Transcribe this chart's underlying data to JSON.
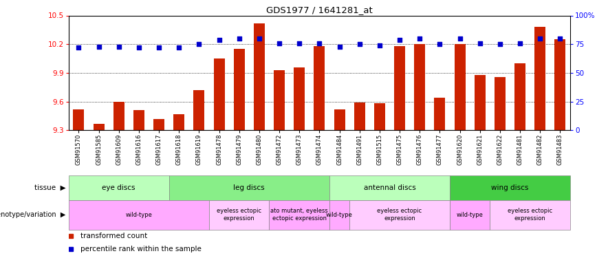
{
  "title": "GDS1977 / 1641281_at",
  "samples": [
    "GSM91570",
    "GSM91585",
    "GSM91609",
    "GSM91616",
    "GSM91617",
    "GSM91618",
    "GSM91619",
    "GSM91478",
    "GSM91479",
    "GSM91480",
    "GSM91472",
    "GSM91473",
    "GSM91474",
    "GSM91484",
    "GSM91491",
    "GSM91515",
    "GSM91475",
    "GSM91476",
    "GSM91477",
    "GSM91620",
    "GSM91621",
    "GSM91622",
    "GSM91481",
    "GSM91482",
    "GSM91483"
  ],
  "bar_values": [
    9.52,
    9.37,
    9.6,
    9.51,
    9.42,
    9.47,
    9.72,
    10.05,
    10.15,
    10.42,
    9.93,
    9.96,
    10.18,
    9.52,
    9.59,
    9.58,
    10.18,
    10.2,
    9.64,
    10.2,
    9.88,
    9.86,
    10.0,
    10.38,
    10.25
  ],
  "percentile_values": [
    72,
    73,
    73,
    72,
    72,
    72,
    75,
    79,
    80,
    80,
    76,
    76,
    76,
    73,
    75,
    74,
    79,
    80,
    75,
    80,
    76,
    75,
    76,
    80,
    80
  ],
  "ylim_left": [
    9.3,
    10.5
  ],
  "ylim_right": [
    0,
    100
  ],
  "yticks_left": [
    9.3,
    9.6,
    9.9,
    10.2,
    10.5
  ],
  "yticks_right": [
    0,
    25,
    50,
    75,
    100
  ],
  "ytick_labels_right": [
    "0",
    "25",
    "50",
    "75",
    "100%"
  ],
  "bar_color": "#cc2200",
  "dot_color": "#0000cc",
  "tissue_groups": [
    {
      "label": "eye discs",
      "start": 0,
      "end": 4,
      "color": "#bbffbb"
    },
    {
      "label": "leg discs",
      "start": 5,
      "end": 12,
      "color": "#88ee88"
    },
    {
      "label": "antennal discs",
      "start": 13,
      "end": 18,
      "color": "#bbffbb"
    },
    {
      "label": "wing discs",
      "start": 19,
      "end": 24,
      "color": "#44cc44"
    }
  ],
  "genotype_groups": [
    {
      "label": "wild-type",
      "start": 0,
      "end": 6,
      "color": "#ffaaff"
    },
    {
      "label": "eyeless ectopic\nexpression",
      "start": 7,
      "end": 9,
      "color": "#ffccff"
    },
    {
      "label": "ato mutant, eyeless\nectopic expression",
      "start": 10,
      "end": 12,
      "color": "#ffaaff"
    },
    {
      "label": "wild-type",
      "start": 13,
      "end": 13,
      "color": "#ffaaff"
    },
    {
      "label": "eyeless ectopic\nexpression",
      "start": 14,
      "end": 18,
      "color": "#ffccff"
    },
    {
      "label": "wild-type",
      "start": 19,
      "end": 20,
      "color": "#ffaaff"
    },
    {
      "label": "eyeless ectopic\nexpression",
      "start": 21,
      "end": 24,
      "color": "#ffccff"
    }
  ],
  "tissue_label": "tissue",
  "genotype_label": "genotype/variation",
  "legend_bar": "transformed count",
  "legend_dot": "percentile rank within the sample",
  "background_color": "#ffffff"
}
